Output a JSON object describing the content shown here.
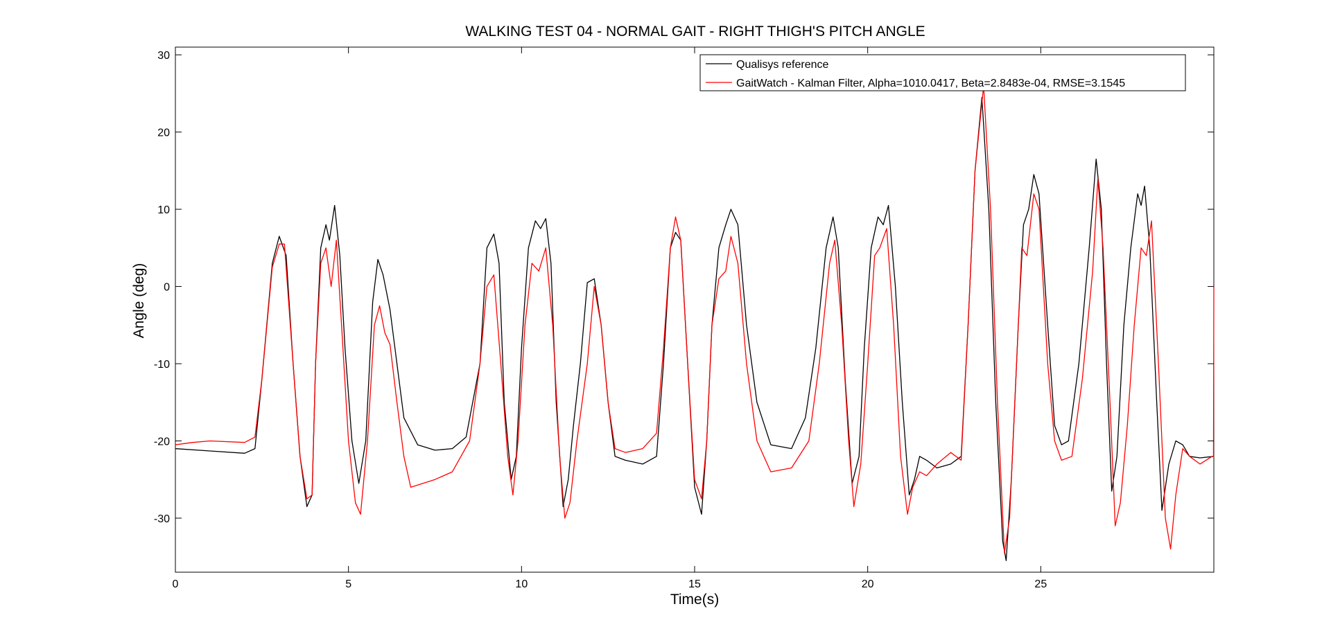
{
  "chart_data": {
    "type": "line",
    "title": "WALKING TEST 04 - NORMAL GAIT - RIGHT THIGH'S PITCH ANGLE",
    "xlabel": "Time(s)",
    "ylabel": "Angle (deg)",
    "xlim": [
      0,
      30
    ],
    "ylim": [
      -37,
      31
    ],
    "x_ticks": [
      "0",
      "5",
      "10",
      "15",
      "20",
      "25"
    ],
    "y_ticks": [
      "30",
      "20",
      "10",
      "0",
      "-10",
      "-20",
      "-30"
    ],
    "legend_position": "top-right",
    "grid": false,
    "series": [
      {
        "name": "Qualisys reference",
        "color": "#000000",
        "points": [
          [
            0,
            -21.0
          ],
          [
            1,
            -21.3
          ],
          [
            2,
            -21.6
          ],
          [
            2.3,
            -21.0
          ],
          [
            2.5,
            -12.0
          ],
          [
            2.8,
            3.0
          ],
          [
            3.0,
            6.5
          ],
          [
            3.2,
            4.0
          ],
          [
            3.4,
            -10.0
          ],
          [
            3.6,
            -22.0
          ],
          [
            3.8,
            -28.5
          ],
          [
            3.95,
            -27.0
          ],
          [
            4.05,
            -10.0
          ],
          [
            4.2,
            5.0
          ],
          [
            4.35,
            8.0
          ],
          [
            4.45,
            6.0
          ],
          [
            4.6,
            10.5
          ],
          [
            4.75,
            4.0
          ],
          [
            4.9,
            -8.0
          ],
          [
            5.1,
            -20.0
          ],
          [
            5.3,
            -25.5
          ],
          [
            5.5,
            -20.0
          ],
          [
            5.7,
            -2.0
          ],
          [
            5.85,
            3.5
          ],
          [
            6.0,
            1.5
          ],
          [
            6.2,
            -3.0
          ],
          [
            6.4,
            -10.0
          ],
          [
            6.6,
            -17.0
          ],
          [
            7.0,
            -20.5
          ],
          [
            7.5,
            -21.2
          ],
          [
            8.0,
            -21.0
          ],
          [
            8.4,
            -19.5
          ],
          [
            8.8,
            -10.0
          ],
          [
            9.0,
            5.0
          ],
          [
            9.2,
            6.8
          ],
          [
            9.35,
            3.0
          ],
          [
            9.5,
            -15.0
          ],
          [
            9.7,
            -25.0
          ],
          [
            9.85,
            -22.0
          ],
          [
            10.0,
            -8.0
          ],
          [
            10.2,
            5.0
          ],
          [
            10.4,
            8.5
          ],
          [
            10.55,
            7.5
          ],
          [
            10.7,
            8.8
          ],
          [
            10.85,
            3.0
          ],
          [
            11.0,
            -15.0
          ],
          [
            11.2,
            -28.5
          ],
          [
            11.35,
            -25.0
          ],
          [
            11.5,
            -18.0
          ],
          [
            11.7,
            -10.0
          ],
          [
            11.9,
            0.5
          ],
          [
            12.1,
            1.0
          ],
          [
            12.3,
            -5.0
          ],
          [
            12.5,
            -15.0
          ],
          [
            12.7,
            -22.0
          ],
          [
            13.0,
            -22.5
          ],
          [
            13.5,
            -23.0
          ],
          [
            13.9,
            -22.0
          ],
          [
            14.1,
            -10.0
          ],
          [
            14.3,
            5.0
          ],
          [
            14.45,
            7.0
          ],
          [
            14.6,
            6.0
          ],
          [
            14.8,
            -10.0
          ],
          [
            15.0,
            -26.0
          ],
          [
            15.2,
            -29.5
          ],
          [
            15.35,
            -20.0
          ],
          [
            15.5,
            -5.0
          ],
          [
            15.7,
            5.0
          ],
          [
            15.9,
            8.0
          ],
          [
            16.05,
            10.0
          ],
          [
            16.25,
            8.0
          ],
          [
            16.5,
            -5.0
          ],
          [
            16.8,
            -15.0
          ],
          [
            17.2,
            -20.5
          ],
          [
            17.8,
            -21.0
          ],
          [
            18.2,
            -17.0
          ],
          [
            18.5,
            -8.0
          ],
          [
            18.8,
            5.0
          ],
          [
            19.0,
            9.0
          ],
          [
            19.15,
            5.0
          ],
          [
            19.35,
            -12.0
          ],
          [
            19.55,
            -25.5
          ],
          [
            19.75,
            -22.0
          ],
          [
            19.9,
            -8.0
          ],
          [
            20.1,
            5.0
          ],
          [
            20.3,
            9.0
          ],
          [
            20.45,
            8.0
          ],
          [
            20.6,
            10.5
          ],
          [
            20.8,
            0.0
          ],
          [
            21.0,
            -15.0
          ],
          [
            21.2,
            -27.0
          ],
          [
            21.35,
            -25.0
          ],
          [
            21.5,
            -22.0
          ],
          [
            21.7,
            -22.5
          ],
          [
            22.0,
            -23.5
          ],
          [
            22.4,
            -23.0
          ],
          [
            22.7,
            -22.0
          ],
          [
            22.9,
            -5.0
          ],
          [
            23.1,
            15.0
          ],
          [
            23.3,
            24.5
          ],
          [
            23.5,
            10.0
          ],
          [
            23.7,
            -15.0
          ],
          [
            23.9,
            -33.0
          ],
          [
            24.0,
            -35.5
          ],
          [
            24.15,
            -25.0
          ],
          [
            24.35,
            -5.0
          ],
          [
            24.5,
            8.0
          ],
          [
            24.65,
            10.0
          ],
          [
            24.8,
            14.5
          ],
          [
            24.95,
            12.0
          ],
          [
            25.2,
            -5.0
          ],
          [
            25.4,
            -18.0
          ],
          [
            25.6,
            -20.5
          ],
          [
            25.8,
            -20.0
          ],
          [
            26.1,
            -10.0
          ],
          [
            26.4,
            5.0
          ],
          [
            26.6,
            16.5
          ],
          [
            26.75,
            10.0
          ],
          [
            26.9,
            -10.0
          ],
          [
            27.05,
            -26.5
          ],
          [
            27.2,
            -22.0
          ],
          [
            27.4,
            -5.0
          ],
          [
            27.6,
            5.0
          ],
          [
            27.8,
            12.0
          ],
          [
            27.9,
            10.5
          ],
          [
            28.0,
            13.0
          ],
          [
            28.15,
            5.0
          ],
          [
            28.35,
            -15.0
          ],
          [
            28.5,
            -29.0
          ],
          [
            28.7,
            -23.0
          ],
          [
            28.9,
            -20.0
          ],
          [
            29.1,
            -20.5
          ],
          [
            29.3,
            -22.0
          ],
          [
            29.6,
            -22.2
          ],
          [
            30.0,
            -22.0
          ]
        ]
      },
      {
        "name": "GaitWatch - Kalman Filter, Alpha=1010.0417, Beta=2.8483e-04, RMSE=3.1545",
        "color": "#ff0000",
        "points": [
          [
            0,
            -20.5
          ],
          [
            0.5,
            -20.2
          ],
          [
            1,
            -20.0
          ],
          [
            2,
            -20.2
          ],
          [
            2.3,
            -19.5
          ],
          [
            2.5,
            -12.0
          ],
          [
            2.8,
            2.5
          ],
          [
            3.0,
            5.5
          ],
          [
            3.15,
            5.5
          ],
          [
            3.4,
            -10.0
          ],
          [
            3.6,
            -22.0
          ],
          [
            3.8,
            -27.5
          ],
          [
            3.95,
            -27.0
          ],
          [
            4.05,
            -10.0
          ],
          [
            4.2,
            3.0
          ],
          [
            4.35,
            5.0
          ],
          [
            4.5,
            0.0
          ],
          [
            4.65,
            6.0
          ],
          [
            4.8,
            -5.0
          ],
          [
            5.0,
            -20.0
          ],
          [
            5.2,
            -28.0
          ],
          [
            5.35,
            -29.5
          ],
          [
            5.55,
            -20.0
          ],
          [
            5.75,
            -5.0
          ],
          [
            5.9,
            -2.5
          ],
          [
            6.05,
            -6.0
          ],
          [
            6.2,
            -7.5
          ],
          [
            6.4,
            -15.0
          ],
          [
            6.6,
            -22.0
          ],
          [
            6.8,
            -26.0
          ],
          [
            7.5,
            -25.0
          ],
          [
            8.0,
            -24.0
          ],
          [
            8.5,
            -20.0
          ],
          [
            8.8,
            -10.0
          ],
          [
            9.0,
            0.0
          ],
          [
            9.2,
            1.5
          ],
          [
            9.4,
            -10.0
          ],
          [
            9.6,
            -22.0
          ],
          [
            9.75,
            -27.0
          ],
          [
            9.9,
            -20.0
          ],
          [
            10.1,
            -5.0
          ],
          [
            10.3,
            3.0
          ],
          [
            10.5,
            2.0
          ],
          [
            10.7,
            5.0
          ],
          [
            10.9,
            -5.0
          ],
          [
            11.1,
            -22.0
          ],
          [
            11.25,
            -30.0
          ],
          [
            11.4,
            -28.0
          ],
          [
            11.6,
            -20.0
          ],
          [
            11.9,
            -10.0
          ],
          [
            12.1,
            0.0
          ],
          [
            12.3,
            -5.0
          ],
          [
            12.5,
            -15.0
          ],
          [
            12.7,
            -21.0
          ],
          [
            13.0,
            -21.5
          ],
          [
            13.5,
            -21.0
          ],
          [
            13.9,
            -19.0
          ],
          [
            14.1,
            -8.0
          ],
          [
            14.3,
            5.0
          ],
          [
            14.45,
            9.0
          ],
          [
            14.6,
            6.0
          ],
          [
            14.8,
            -10.0
          ],
          [
            15.0,
            -25.0
          ],
          [
            15.2,
            -27.5
          ],
          [
            15.35,
            -20.0
          ],
          [
            15.5,
            -5.0
          ],
          [
            15.7,
            1.0
          ],
          [
            15.9,
            2.0
          ],
          [
            16.05,
            6.5
          ],
          [
            16.25,
            3.0
          ],
          [
            16.5,
            -10.0
          ],
          [
            16.8,
            -20.0
          ],
          [
            17.2,
            -24.0
          ],
          [
            17.8,
            -23.5
          ],
          [
            18.3,
            -20.0
          ],
          [
            18.6,
            -10.0
          ],
          [
            18.9,
            3.0
          ],
          [
            19.05,
            6.0
          ],
          [
            19.25,
            -5.0
          ],
          [
            19.45,
            -20.0
          ],
          [
            19.6,
            -28.5
          ],
          [
            19.8,
            -23.0
          ],
          [
            20.0,
            -10.0
          ],
          [
            20.2,
            4.0
          ],
          [
            20.35,
            5.0
          ],
          [
            20.55,
            7.5
          ],
          [
            20.75,
            -5.0
          ],
          [
            20.95,
            -22.0
          ],
          [
            21.15,
            -29.5
          ],
          [
            21.3,
            -26.0
          ],
          [
            21.5,
            -24.0
          ],
          [
            21.7,
            -24.5
          ],
          [
            22.0,
            -23.0
          ],
          [
            22.4,
            -21.5
          ],
          [
            22.7,
            -22.5
          ],
          [
            22.9,
            -5.0
          ],
          [
            23.1,
            15.0
          ],
          [
            23.35,
            26.0
          ],
          [
            23.55,
            10.0
          ],
          [
            23.75,
            -15.0
          ],
          [
            23.95,
            -34.5
          ],
          [
            24.1,
            -30.0
          ],
          [
            24.3,
            -10.0
          ],
          [
            24.45,
            5.0
          ],
          [
            24.6,
            4.0
          ],
          [
            24.8,
            12.0
          ],
          [
            24.95,
            10.0
          ],
          [
            25.2,
            -10.0
          ],
          [
            25.4,
            -20.0
          ],
          [
            25.6,
            -22.5
          ],
          [
            25.9,
            -22.0
          ],
          [
            26.2,
            -12.0
          ],
          [
            26.5,
            2.0
          ],
          [
            26.65,
            14.0
          ],
          [
            26.8,
            5.0
          ],
          [
            27.0,
            -15.0
          ],
          [
            27.15,
            -31.0
          ],
          [
            27.3,
            -28.0
          ],
          [
            27.5,
            -18.0
          ],
          [
            27.7,
            -5.0
          ],
          [
            27.9,
            5.0
          ],
          [
            28.05,
            4.0
          ],
          [
            28.2,
            8.5
          ],
          [
            28.4,
            -10.0
          ],
          [
            28.6,
            -30.0
          ],
          [
            28.75,
            -34.0
          ],
          [
            28.9,
            -27.0
          ],
          [
            29.1,
            -21.0
          ],
          [
            29.3,
            -22.0
          ],
          [
            29.6,
            -23.0
          ],
          [
            29.95,
            -22.0
          ],
          [
            29.99,
            -22.0
          ],
          [
            30.0,
            0.0
          ]
        ]
      }
    ]
  }
}
